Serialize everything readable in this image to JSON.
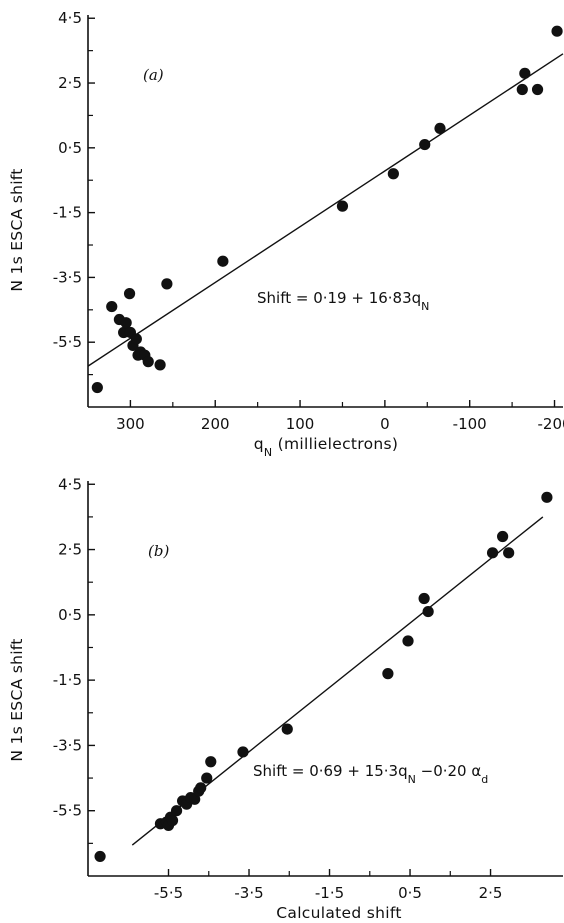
{
  "chart_data": [
    {
      "type": "scatter",
      "panel_label": "(a)",
      "xlabel": "q_N (millielectrons)",
      "ylabel": "N 1s ESCA shift",
      "xlim": [
        350,
        -210
      ],
      "ylim": [
        -7.5,
        4.6
      ],
      "x_reversed": true,
      "xticks": [
        300,
        200,
        100,
        0,
        -100,
        -200
      ],
      "xtick_labels": [
        "300",
        "200",
        "100",
        "0",
        "-100",
        "-200"
      ],
      "yticks": [
        4.5,
        2.5,
        0.5,
        -1.5,
        -3.5,
        -5.5
      ],
      "ytick_labels": [
        "4·5",
        "2·5",
        "0·5",
        "-1·5",
        "-3·5",
        "-5·5"
      ],
      "annotation": "Shift = 0·19 + 16·83q_N",
      "fit_line": {
        "x": [
          350,
          -210
        ]
      },
      "points": [
        {
          "x": 339,
          "y": -6.9
        },
        {
          "x": 322,
          "y": -4.4
        },
        {
          "x": 313,
          "y": -4.8
        },
        {
          "x": 308,
          "y": -5.2
        },
        {
          "x": 305,
          "y": -4.9
        },
        {
          "x": 301,
          "y": -4.0
        },
        {
          "x": 300,
          "y": -5.2
        },
        {
          "x": 297,
          "y": -5.6
        },
        {
          "x": 293,
          "y": -5.4
        },
        {
          "x": 291,
          "y": -5.9
        },
        {
          "x": 288,
          "y": -5.8
        },
        {
          "x": 283,
          "y": -5.9
        },
        {
          "x": 279,
          "y": -6.1
        },
        {
          "x": 265,
          "y": -6.2
        },
        {
          "x": 257,
          "y": -3.7
        },
        {
          "x": 191,
          "y": -3.0
        },
        {
          "x": 50,
          "y": -1.3
        },
        {
          "x": -10,
          "y": -0.3
        },
        {
          "x": -47,
          "y": 0.6
        },
        {
          "x": -65,
          "y": 1.1
        },
        {
          "x": -162,
          "y": 2.3
        },
        {
          "x": -165,
          "y": 2.8
        },
        {
          "x": -180,
          "y": 2.3
        },
        {
          "x": -203,
          "y": 4.1
        }
      ]
    },
    {
      "type": "scatter",
      "panel_label": "(b)",
      "xlabel": "Calculated shift",
      "ylabel": "N 1s ESCA shift",
      "xlim": [
        -7.5,
        4.3
      ],
      "ylim": [
        -7.5,
        4.6
      ],
      "xticks": [
        -5.5,
        -3.5,
        -1.5,
        0.5,
        2.5
      ],
      "xtick_labels": [
        "-5·5",
        "-3·5",
        "-1·5",
        "0·5",
        "2·5"
      ],
      "yticks": [
        4.5,
        2.5,
        0.5,
        -1.5,
        -3.5,
        -5.5
      ],
      "ytick_labels": [
        "4·5",
        "2·5",
        "0·5",
        "-1·5",
        "-3·5",
        "-5·5"
      ],
      "annotation": "Shift = 0·69 + 15·3q_N −0·20 α_d",
      "fit_line": {
        "x": [
          -6.4,
          3.8
        ]
      },
      "points": [
        {
          "x": -7.2,
          "y": -6.9
        },
        {
          "x": -5.7,
          "y": -5.9
        },
        {
          "x": -5.55,
          "y": -5.85
        },
        {
          "x": -5.5,
          "y": -5.95
        },
        {
          "x": -5.45,
          "y": -5.7
        },
        {
          "x": -5.4,
          "y": -5.8
        },
        {
          "x": -5.3,
          "y": -5.5
        },
        {
          "x": -5.15,
          "y": -5.2
        },
        {
          "x": -5.05,
          "y": -5.3
        },
        {
          "x": -4.95,
          "y": -5.1
        },
        {
          "x": -4.85,
          "y": -5.15
        },
        {
          "x": -4.75,
          "y": -4.9
        },
        {
          "x": -4.7,
          "y": -4.8
        },
        {
          "x": -4.55,
          "y": -4.5
        },
        {
          "x": -4.45,
          "y": -4.0
        },
        {
          "x": -3.65,
          "y": -3.7
        },
        {
          "x": -2.55,
          "y": -3.0
        },
        {
          "x": -0.05,
          "y": -1.3
        },
        {
          "x": 0.45,
          "y": -0.3
        },
        {
          "x": 0.85,
          "y": 1.0
        },
        {
          "x": 0.95,
          "y": 0.6
        },
        {
          "x": 2.55,
          "y": 2.4
        },
        {
          "x": 2.8,
          "y": 2.9
        },
        {
          "x": 2.95,
          "y": 2.4
        },
        {
          "x": 3.9,
          "y": 4.1
        }
      ]
    }
  ]
}
